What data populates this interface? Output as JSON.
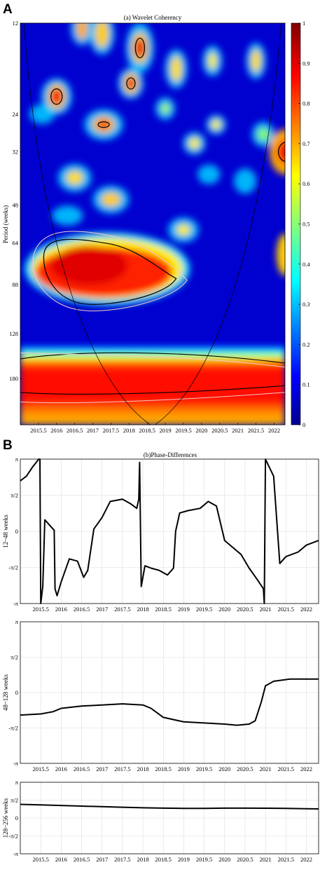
{
  "figure": {
    "panel_a_letter": "A",
    "panel_b_letter": "B"
  },
  "chart_data": [
    {
      "type": "heatmap",
      "title": "(a) Wavelet Coherency",
      "xlabel": "",
      "ylabel": "Period (weeks)",
      "x_ticks": [
        "2015.5",
        "2016",
        "2016.5",
        "2017",
        "2017.5",
        "2018",
        "2018.5",
        "2019",
        "2019.5",
        "2020",
        "2020.5",
        "2021",
        "2021.5",
        "2022"
      ],
      "y_ticks": [
        "12",
        "24",
        "32",
        "48",
        "64",
        "88",
        "128",
        "180"
      ],
      "colorbar_ticks": [
        "0",
        "0.1",
        "0.2",
        "0.3",
        "0.4",
        "0.5",
        "0.6",
        "0.7",
        "0.8",
        "0.9",
        "1"
      ],
      "colorbar_range": [
        0,
        1
      ],
      "x_range": [
        2015.0,
        2022.3
      ],
      "period_range_weeks": [
        12,
        256
      ],
      "y_scale": "log2",
      "cone_of_influence": true
    },
    {
      "type": "line",
      "title": "(b)Phase-Differences",
      "ylabel": "12~48 weeks",
      "y_ticks": [
        "-π",
        "-π/2",
        "0",
        "π/2",
        "π"
      ],
      "ylim": [
        -3.1416,
        3.1416
      ],
      "x_ticks": [
        "2015.5",
        "2016",
        "2016.5",
        "2017",
        "2017.5",
        "2018",
        "2018.5",
        "2019",
        "2019.5",
        "2020",
        "2020.5",
        "2021",
        "2021.5",
        "2022"
      ],
      "x_range": [
        2015.0,
        2022.3
      ],
      "grid": true,
      "series": [
        {
          "x": [
            2015.0,
            2015.15,
            2015.3,
            2015.45,
            2015.48,
            2015.5,
            2015.55,
            2015.6,
            2015.75,
            2015.83,
            2015.85,
            2015.9,
            2016.0,
            2016.2,
            2016.4,
            2016.55,
            2016.65,
            2016.8,
            2017.0,
            2017.2,
            2017.5,
            2017.7,
            2017.85,
            2017.9,
            2017.92,
            2017.96,
            2018.05,
            2018.2,
            2018.4,
            2018.6,
            2018.75,
            2018.8,
            2018.9,
            2019.1,
            2019.4,
            2019.6,
            2019.8,
            2020.0,
            2020.2,
            2020.4,
            2020.6,
            2020.8,
            2020.95,
            2020.97,
            2021.0,
            2021.2,
            2021.35,
            2021.5,
            2021.8,
            2022.0,
            2022.3
          ],
          "y": [
            2.2,
            2.4,
            2.8,
            3.14,
            3.14,
            -3.14,
            -2.4,
            0.5,
            0.2,
            0.05,
            -2.5,
            -2.8,
            -2.2,
            -1.2,
            -1.3,
            -2.0,
            -1.7,
            0.1,
            0.6,
            1.3,
            1.4,
            1.2,
            1.0,
            1.4,
            3.0,
            -2.4,
            -1.5,
            -1.6,
            -1.7,
            -1.9,
            -1.6,
            0.0,
            0.8,
            0.9,
            1.0,
            1.3,
            1.1,
            -0.4,
            -0.7,
            -1.0,
            -1.6,
            -2.1,
            -2.5,
            -3.14,
            3.14,
            2.4,
            -1.4,
            -1.1,
            -0.9,
            -0.6,
            -0.4
          ]
        }
      ]
    },
    {
      "type": "line",
      "ylabel": "48~128 weeks",
      "y_ticks": [
        "-π",
        "-π/2",
        "0",
        "π/2",
        "π"
      ],
      "ylim": [
        -3.1416,
        3.1416
      ],
      "x_ticks": [
        "2015.5",
        "2016",
        "2016.5",
        "2017",
        "2017.5",
        "2018",
        "2018.5",
        "2019",
        "2019.5",
        "2020",
        "2020.5",
        "2021",
        "2021.5",
        "2022"
      ],
      "x_range": [
        2015.0,
        2022.3
      ],
      "grid": true,
      "series": [
        {
          "x": [
            2015.0,
            2015.5,
            2015.8,
            2016.0,
            2016.5,
            2017.0,
            2017.5,
            2018.0,
            2018.2,
            2018.5,
            2019.0,
            2019.5,
            2020.0,
            2020.3,
            2020.6,
            2020.75,
            2020.9,
            2021.0,
            2021.2,
            2021.6,
            2022.0,
            2022.3
          ],
          "y": [
            -1.0,
            -0.95,
            -0.85,
            -0.7,
            -0.6,
            -0.55,
            -0.5,
            -0.55,
            -0.7,
            -1.1,
            -1.3,
            -1.35,
            -1.4,
            -1.45,
            -1.4,
            -1.25,
            -0.4,
            0.3,
            0.5,
            0.6,
            0.6,
            0.6
          ]
        }
      ]
    },
    {
      "type": "line",
      "ylabel": "128~256 weeks",
      "y_ticks": [
        "-π",
        "-π/2",
        "0",
        "π/2",
        "π"
      ],
      "ylim": [
        -3.1416,
        3.1416
      ],
      "x_ticks": [
        "2015.5",
        "2016",
        "2016.5",
        "2017",
        "2017.5",
        "2018",
        "2018.5",
        "2019",
        "2019.5",
        "2020",
        "2020.5",
        "2021",
        "2021.5",
        "2022"
      ],
      "x_range": [
        2015.0,
        2022.3
      ],
      "grid": true,
      "series": [
        {
          "x": [
            2015.0,
            2015.5,
            2016.0,
            2016.5,
            2017.0,
            2017.5,
            2018.0,
            2018.5,
            2019.0,
            2019.5,
            2020.0,
            2020.5,
            2021.0,
            2021.5,
            2022.0,
            2022.3
          ],
          "y": [
            1.2,
            1.15,
            1.1,
            1.05,
            1.0,
            0.95,
            0.9,
            0.87,
            0.85,
            0.85,
            0.87,
            0.87,
            0.86,
            0.85,
            0.82,
            0.8
          ]
        }
      ]
    }
  ]
}
